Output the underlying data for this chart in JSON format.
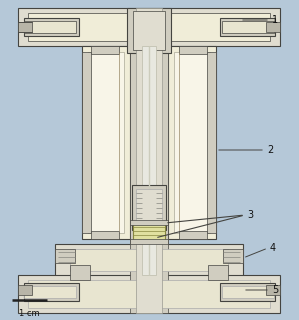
{
  "bg_color": "#b5c8d8",
  "cream": "#f0edd8",
  "cream2": "#e8e5d0",
  "white_metal": "#e0ddd0",
  "lt_gray": "#d0cdc0",
  "gray": "#b8b5a8",
  "dk_gray": "#888880",
  "outline": "#444440",
  "yellow_green": "#e0e0a0",
  "scale_bar_label": "1 cm",
  "fig_w": 2.99,
  "fig_h": 3.2,
  "dpi": 100
}
